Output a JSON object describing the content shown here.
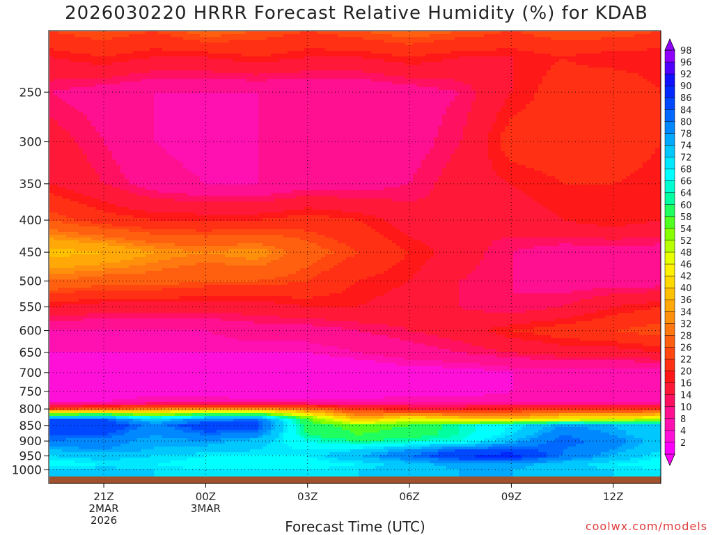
{
  "chart_data": {
    "type": "heatmap",
    "title": "2026030220 HRRR Forecast Relative Humidity (%) for KDAB",
    "xlabel": "Forecast Time (UTC)",
    "ylabel": "",
    "credit": "coolwx.com/models",
    "y_axis": {
      "scale": "log-pressure",
      "ticks": [
        250,
        300,
        350,
        400,
        450,
        500,
        550,
        600,
        650,
        700,
        750,
        800,
        850,
        900,
        950,
        1000
      ],
      "tick_labels": [
        "250",
        "300",
        "350",
        "400",
        "450",
        "500",
        "550",
        "600",
        "650",
        "700",
        "750",
        "800",
        "850",
        "900",
        "950",
        "1000"
      ],
      "range": [
        200,
        1025
      ]
    },
    "x_axis": {
      "unit": "hours after 21Z 2 Mar 2026",
      "range": [
        -1.6,
        16.4
      ],
      "ticks": [
        {
          "hour": 0,
          "lines": [
            "21Z",
            "2MAR",
            "2026"
          ]
        },
        {
          "hour": 3,
          "lines": [
            "00Z",
            "3MAR"
          ]
        },
        {
          "hour": 6,
          "lines": [
            "03Z"
          ]
        },
        {
          "hour": 9,
          "lines": [
            "06Z"
          ]
        },
        {
          "hour": 12,
          "lines": [
            "09Z"
          ]
        },
        {
          "hour": 15,
          "lines": [
            "12Z"
          ]
        }
      ]
    },
    "grid": true,
    "legend_position": "right",
    "colorbar": {
      "levels": [
        2,
        4,
        8,
        10,
        14,
        16,
        20,
        22,
        26,
        28,
        32,
        34,
        36,
        40,
        42,
        46,
        48,
        52,
        54,
        58,
        60,
        64,
        66,
        68,
        72,
        74,
        78,
        80,
        84,
        86,
        90,
        92,
        96,
        98
      ],
      "labels": [
        "98",
        "96",
        "92",
        "90",
        "86",
        "84",
        "80",
        "78",
        "74",
        "72",
        "68",
        "66",
        "64",
        "60",
        "58",
        "54",
        "52",
        "48",
        "46",
        "42",
        "40",
        "36",
        "34",
        "32",
        "28",
        "26",
        "22",
        "20",
        "16",
        "14",
        "10",
        "8",
        "4",
        "2"
      ],
      "colors_low_to_high": [
        "#ff00ff",
        "#ff10d8",
        "#ff10b0",
        "#ff1090",
        "#ff1060",
        "#ff1838",
        "#ff1818",
        "#ff3014",
        "#ff4810",
        "#ff6010",
        "#ff7810",
        "#ff900c",
        "#ffa808",
        "#ffc000",
        "#ffd800",
        "#fff000",
        "#e8ff00",
        "#b8ff00",
        "#88ff00",
        "#50ff20",
        "#20ff60",
        "#00ffa0",
        "#00ffd0",
        "#00ffff",
        "#00e8ff",
        "#00c8ff",
        "#00a8ff",
        "#0088ff",
        "#0068ff",
        "#0048ff",
        "#0028ff",
        "#1010ff",
        "#5000ff",
        "#9000ff"
      ]
    },
    "rh_levels_hpa": [
      200,
      220,
      250,
      300,
      350,
      400,
      450,
      500,
      550,
      600,
      650,
      700,
      750,
      780,
      800,
      830,
      850,
      880,
      900,
      930,
      950,
      980,
      1000,
      1025
    ],
    "rh_hours": [
      -1.6,
      0,
      1.5,
      3,
      4.5,
      6,
      7.5,
      9,
      10.5,
      12,
      13.5,
      15,
      16.4
    ],
    "rh_values": [
      [
        26,
        28,
        26,
        30,
        28,
        26,
        28,
        30,
        28,
        26,
        28,
        28,
        26
      ],
      [
        20,
        22,
        20,
        20,
        22,
        20,
        20,
        22,
        20,
        20,
        22,
        20,
        20
      ],
      [
        14,
        12,
        10,
        10,
        10,
        10,
        10,
        12,
        14,
        20,
        24,
        26,
        22
      ],
      [
        18,
        14,
        10,
        8,
        10,
        10,
        10,
        12,
        16,
        24,
        24,
        26,
        22
      ],
      [
        20,
        16,
        12,
        10,
        10,
        12,
        12,
        14,
        18,
        20,
        22,
        22,
        20
      ],
      [
        28,
        24,
        22,
        22,
        22,
        24,
        22,
        18,
        16,
        18,
        20,
        22,
        20
      ],
      [
        42,
        40,
        36,
        34,
        36,
        30,
        26,
        22,
        18,
        14,
        12,
        12,
        12
      ],
      [
        32,
        30,
        30,
        28,
        28,
        26,
        22,
        20,
        16,
        14,
        12,
        12,
        12
      ],
      [
        20,
        18,
        18,
        18,
        18,
        20,
        20,
        18,
        16,
        14,
        16,
        20,
        22
      ],
      [
        10,
        10,
        10,
        10,
        12,
        12,
        14,
        16,
        18,
        22,
        24,
        26,
        28
      ],
      [
        8,
        8,
        8,
        8,
        8,
        8,
        10,
        12,
        14,
        16,
        18,
        18,
        20
      ],
      [
        6,
        6,
        6,
        4,
        4,
        4,
        4,
        6,
        6,
        8,
        8,
        8,
        8
      ],
      [
        6,
        6,
        6,
        6,
        4,
        4,
        4,
        6,
        6,
        8,
        8,
        8,
        8
      ],
      [
        8,
        8,
        10,
        10,
        10,
        10,
        10,
        10,
        10,
        10,
        10,
        10,
        10
      ],
      [
        26,
        30,
        34,
        36,
        36,
        32,
        24,
        20,
        20,
        22,
        24,
        24,
        26
      ],
      [
        86,
        86,
        74,
        82,
        84,
        60,
        40,
        48,
        44,
        42,
        46,
        48,
        52
      ],
      [
        88,
        90,
        82,
        90,
        88,
        62,
        58,
        60,
        66,
        72,
        80,
        78,
        74
      ],
      [
        86,
        86,
        80,
        84,
        82,
        64,
        60,
        62,
        66,
        74,
        84,
        80,
        74
      ],
      [
        84,
        82,
        78,
        80,
        76,
        68,
        64,
        66,
        68,
        78,
        86,
        82,
        76
      ],
      [
        78,
        80,
        78,
        76,
        74,
        72,
        74,
        80,
        86,
        88,
        84,
        80,
        74
      ],
      [
        74,
        76,
        74,
        72,
        72,
        72,
        78,
        84,
        90,
        92,
        84,
        78,
        72
      ],
      [
        70,
        72,
        72,
        70,
        70,
        70,
        72,
        76,
        80,
        80,
        76,
        72,
        70
      ],
      [
        74,
        76,
        74,
        72,
        72,
        72,
        74,
        76,
        78,
        78,
        76,
        74,
        72
      ],
      [
        74,
        76,
        74,
        72,
        72,
        72,
        74,
        76,
        78,
        78,
        76,
        74,
        72
      ]
    ]
  }
}
